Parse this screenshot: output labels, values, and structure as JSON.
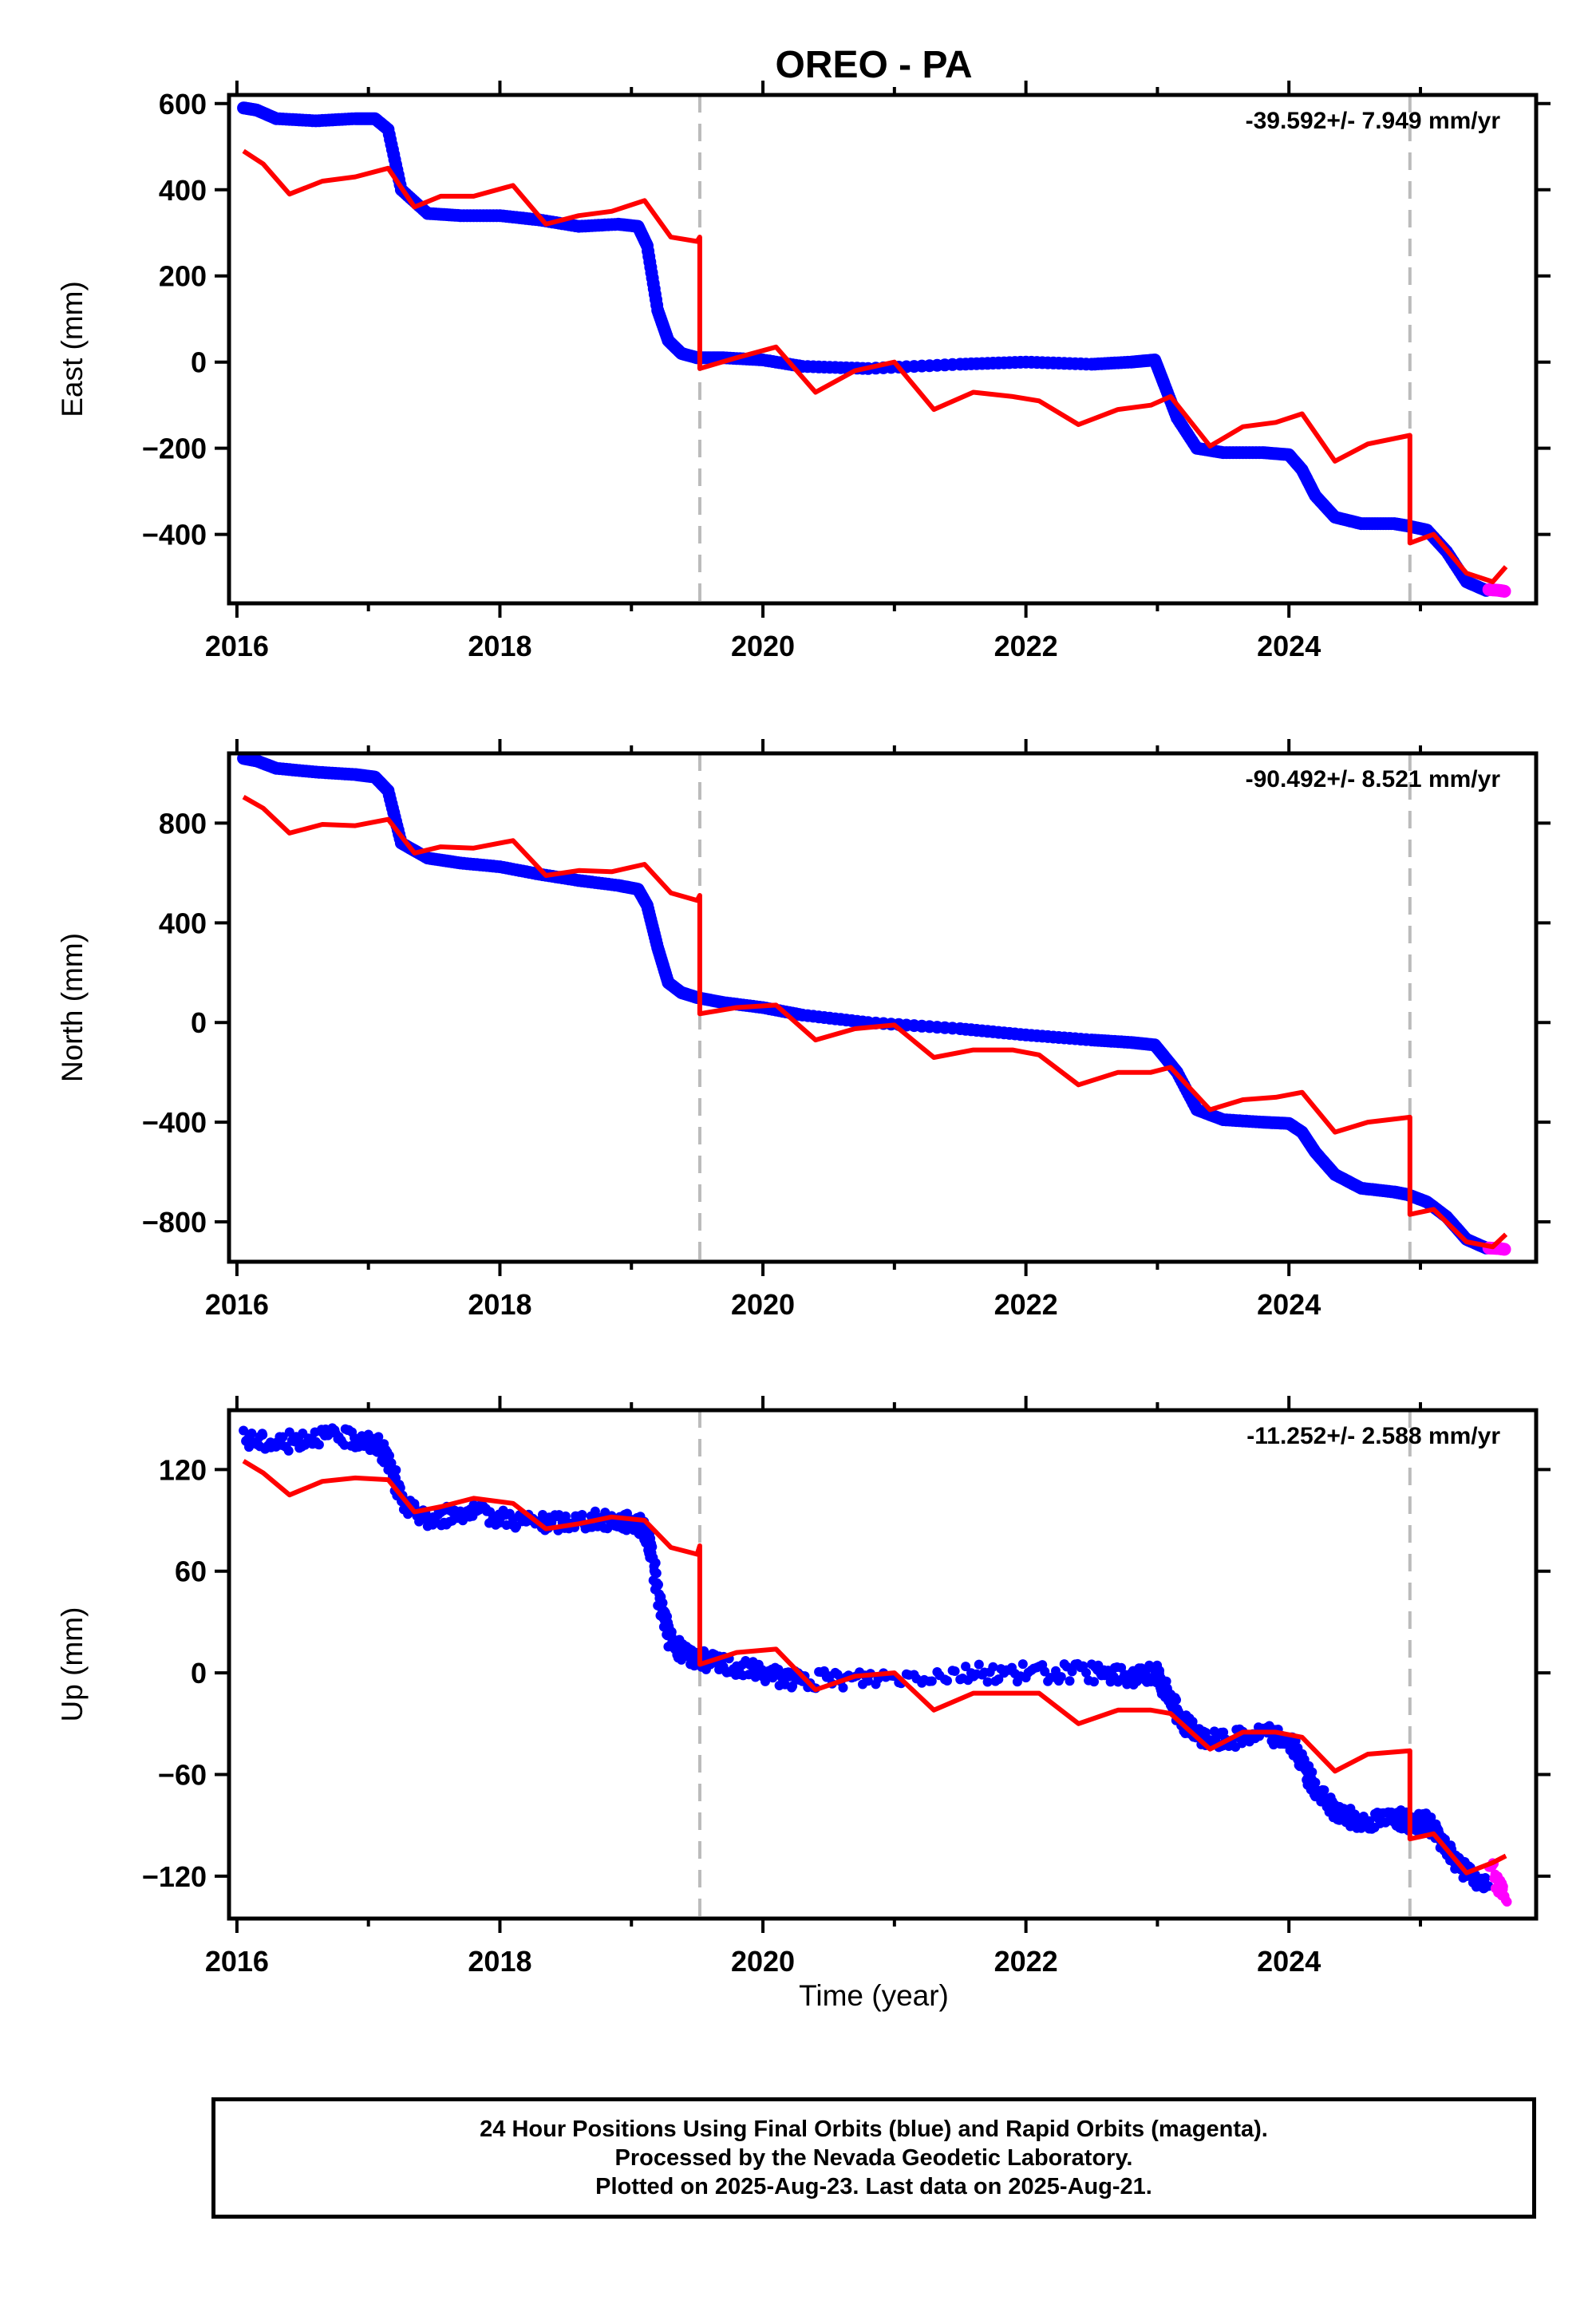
{
  "title": "OREO - PA",
  "xlabel": "Time (year)",
  "caption": [
    "24 Hour Positions Using Final Orbits (blue) and Rapid Orbits (magenta).",
    "Processed by the Nevada Geodetic Laboratory.",
    "Plotted on 2025-Aug-23. Last data on 2025-Aug-21."
  ],
  "colors": {
    "final": "#0000ff",
    "rapid": "#ff00ff",
    "model": "#ff0000",
    "events": "#bbbbbb"
  },
  "chart_data": [
    {
      "type": "scatter",
      "ylabel": "East (mm)",
      "velocity": "-39.592+/- 7.949 mm/yr",
      "xlim": [
        2015.94,
        2025.88
      ],
      "ylim": [
        -560,
        620
      ],
      "xticks": [
        2016,
        2018,
        2020,
        2022,
        2024
      ],
      "yticks": [
        -400,
        -200,
        0,
        200,
        400,
        600
      ],
      "events": [
        2019.52,
        2024.92
      ],
      "series": [
        {
          "role": "final",
          "x": [
            2016.05,
            2016.15,
            2016.3,
            2016.6,
            2016.9,
            2017.05,
            2017.15,
            2017.25,
            2017.45,
            2017.7,
            2018.0,
            2018.3,
            2018.6,
            2018.9,
            2019.05,
            2019.12,
            2019.2,
            2019.28,
            2019.38,
            2019.5,
            2019.7,
            2020.0,
            2020.3,
            2020.8,
            2021.5,
            2022.0,
            2022.5,
            2022.8,
            2022.98,
            2023.05,
            2023.15,
            2023.3,
            2023.5,
            2023.8,
            2024.0,
            2024.1,
            2024.2,
            2024.35,
            2024.55,
            2024.8,
            2024.9,
            2025.05,
            2025.2,
            2025.35,
            2025.5
          ],
          "y": [
            590,
            585,
            565,
            560,
            565,
            565,
            540,
            400,
            345,
            340,
            340,
            330,
            315,
            320,
            315,
            270,
            120,
            50,
            20,
            10,
            10,
            5,
            -10,
            -15,
            -5,
            0,
            -5,
            0,
            5,
            -50,
            -130,
            -200,
            -210,
            -210,
            -215,
            -250,
            -310,
            -360,
            -375,
            -375,
            -380,
            -390,
            -440,
            -510,
            -530
          ]
        },
        {
          "role": "rapid",
          "x": [
            2025.52,
            2025.6,
            2025.64
          ],
          "y": [
            -528,
            -530,
            -532
          ]
        },
        {
          "role": "model",
          "x": [
            2016.05,
            2016.2,
            2016.4,
            2016.65,
            2016.9,
            2017.15,
            2017.35,
            2017.55,
            2017.8,
            2018.1,
            2018.35,
            2018.6,
            2018.85,
            2019.1,
            2019.3,
            2019.5,
            2019.52,
            2019.52,
            2019.8,
            2020.1,
            2020.4,
            2020.7,
            2021.0,
            2021.3,
            2021.6,
            2021.9,
            2022.1,
            2022.4,
            2022.7,
            2022.95,
            2023.1,
            2023.4,
            2023.65,
            2023.9,
            2024.1,
            2024.35,
            2024.6,
            2024.92,
            2024.92,
            2025.1,
            2025.35,
            2025.55,
            2025.65
          ],
          "y": [
            490,
            460,
            390,
            420,
            430,
            450,
            360,
            385,
            385,
            410,
            320,
            340,
            350,
            375,
            290,
            280,
            290,
            -15,
            10,
            35,
            -70,
            -20,
            0,
            -110,
            -70,
            -80,
            -90,
            -145,
            -110,
            -100,
            -80,
            -195,
            -150,
            -140,
            -120,
            -230,
            -190,
            -170,
            -420,
            -400,
            -490,
            -510,
            -475
          ]
        }
      ]
    },
    {
      "type": "scatter",
      "ylabel": "North (mm)",
      "velocity": "-90.492+/- 8.521 mm/yr",
      "xlim": [
        2015.94,
        2025.88
      ],
      "ylim": [
        -960,
        1080
      ],
      "xticks": [
        2016,
        2018,
        2020,
        2022,
        2024
      ],
      "yticks": [
        -800,
        -400,
        0,
        400,
        800
      ],
      "events": [
        2019.52,
        2024.92
      ],
      "series": [
        {
          "role": "final",
          "x": [
            2016.05,
            2016.15,
            2016.3,
            2016.6,
            2016.9,
            2017.05,
            2017.15,
            2017.25,
            2017.45,
            2017.7,
            2018.0,
            2018.3,
            2018.6,
            2018.9,
            2019.05,
            2019.12,
            2019.2,
            2019.28,
            2019.38,
            2019.5,
            2019.7,
            2020.0,
            2020.3,
            2020.8,
            2021.5,
            2022.0,
            2022.5,
            2022.8,
            2022.98,
            2023.05,
            2023.15,
            2023.3,
            2023.5,
            2023.8,
            2024.0,
            2024.1,
            2024.2,
            2024.35,
            2024.55,
            2024.8,
            2024.9,
            2025.05,
            2025.2,
            2025.35,
            2025.5
          ],
          "y": [
            1060,
            1050,
            1020,
            1005,
            995,
            985,
            930,
            720,
            660,
            640,
            625,
            595,
            570,
            550,
            535,
            470,
            300,
            160,
            120,
            100,
            80,
            60,
            30,
            0,
            -25,
            -50,
            -70,
            -80,
            -90,
            -135,
            -200,
            -350,
            -390,
            -400,
            -405,
            -440,
            -520,
            -610,
            -665,
            -680,
            -690,
            -720,
            -780,
            -870,
            -905
          ]
        },
        {
          "role": "rapid",
          "x": [
            2025.52,
            2025.6,
            2025.64
          ],
          "y": [
            -905,
            -907,
            -910
          ]
        },
        {
          "role": "model",
          "x": [
            2016.05,
            2016.2,
            2016.4,
            2016.65,
            2016.9,
            2017.15,
            2017.35,
            2017.55,
            2017.8,
            2018.1,
            2018.35,
            2018.6,
            2018.85,
            2019.1,
            2019.3,
            2019.5,
            2019.52,
            2019.52,
            2019.8,
            2020.1,
            2020.4,
            2020.7,
            2021.0,
            2021.3,
            2021.6,
            2021.9,
            2022.1,
            2022.4,
            2022.7,
            2022.95,
            2023.1,
            2023.4,
            2023.65,
            2023.9,
            2024.1,
            2024.35,
            2024.6,
            2024.92,
            2024.92,
            2025.1,
            2025.35,
            2025.55,
            2025.65
          ],
          "y": [
            905,
            860,
            760,
            795,
            790,
            815,
            680,
            705,
            700,
            730,
            590,
            610,
            605,
            635,
            520,
            490,
            510,
            35,
            60,
            70,
            -70,
            -25,
            -10,
            -140,
            -110,
            -110,
            -130,
            -250,
            -200,
            -200,
            -180,
            -350,
            -310,
            -300,
            -280,
            -440,
            -400,
            -380,
            -770,
            -750,
            -880,
            -900,
            -850
          ]
        }
      ]
    },
    {
      "type": "scatter",
      "ylabel": "Up (mm)",
      "velocity": "-11.252+/- 2.588 mm/yr",
      "xlim": [
        2015.94,
        2025.88
      ],
      "ylim": [
        -145,
        155
      ],
      "xticks": [
        2016,
        2018,
        2020,
        2022,
        2024
      ],
      "yticks": [
        -120,
        -60,
        0,
        60,
        120
      ],
      "events": [
        2019.52,
        2024.92
      ],
      "series": [
        {
          "role": "final",
          "x": [
            2016.05,
            2016.3,
            2016.6,
            2016.9,
            2017.05,
            2017.15,
            2017.25,
            2017.45,
            2017.7,
            2018.0,
            2018.3,
            2018.6,
            2018.9,
            2019.05,
            2019.12,
            2019.2,
            2019.28,
            2019.38,
            2019.5,
            2019.7,
            2020.0,
            2020.3,
            2020.8,
            2021.5,
            2022.0,
            2022.5,
            2022.8,
            2022.98,
            2023.05,
            2023.15,
            2023.3,
            2023.5,
            2023.8,
            2024.0,
            2024.1,
            2024.2,
            2024.35,
            2024.55,
            2024.8,
            2024.9,
            2025.05,
            2025.2,
            2025.35,
            2025.5
          ],
          "y": [
            138,
            135,
            140,
            138,
            135,
            125,
            100,
            90,
            95,
            92,
            88,
            90,
            90,
            88,
            80,
            45,
            20,
            12,
            8,
            5,
            0,
            -5,
            -3,
            0,
            0,
            0,
            -2,
            0,
            -10,
            -25,
            -38,
            -40,
            -35,
            -40,
            -55,
            -70,
            -82,
            -88,
            -85,
            -88,
            -88,
            -105,
            -118,
            -128
          ]
        },
        {
          "role": "rapid",
          "x": [
            2025.52,
            2025.58,
            2025.64
          ],
          "y": [
            -110,
            -125,
            -130
          ]
        },
        {
          "role": "model",
          "x": [
            2016.05,
            2016.2,
            2016.4,
            2016.65,
            2016.9,
            2017.15,
            2017.35,
            2017.55,
            2017.8,
            2018.1,
            2018.35,
            2018.6,
            2018.85,
            2019.1,
            2019.3,
            2019.5,
            2019.52,
            2019.52,
            2019.8,
            2020.1,
            2020.4,
            2020.7,
            2021.0,
            2021.3,
            2021.6,
            2021.9,
            2022.1,
            2022.4,
            2022.7,
            2022.95,
            2023.1,
            2023.4,
            2023.65,
            2023.9,
            2024.1,
            2024.35,
            2024.6,
            2024.92,
            2024.92,
            2025.1,
            2025.35,
            2025.55,
            2025.65
          ],
          "y": [
            125,
            118,
            105,
            113,
            115,
            114,
            95,
            98,
            103,
            100,
            85,
            88,
            92,
            90,
            74,
            70,
            75,
            5,
            12,
            14,
            -10,
            -2,
            0,
            -22,
            -12,
            -12,
            -12,
            -30,
            -22,
            -22,
            -24,
            -45,
            -35,
            -35,
            -38,
            -58,
            -48,
            -46,
            -98,
            -95,
            -118,
            -112,
            -108
          ]
        }
      ]
    }
  ]
}
